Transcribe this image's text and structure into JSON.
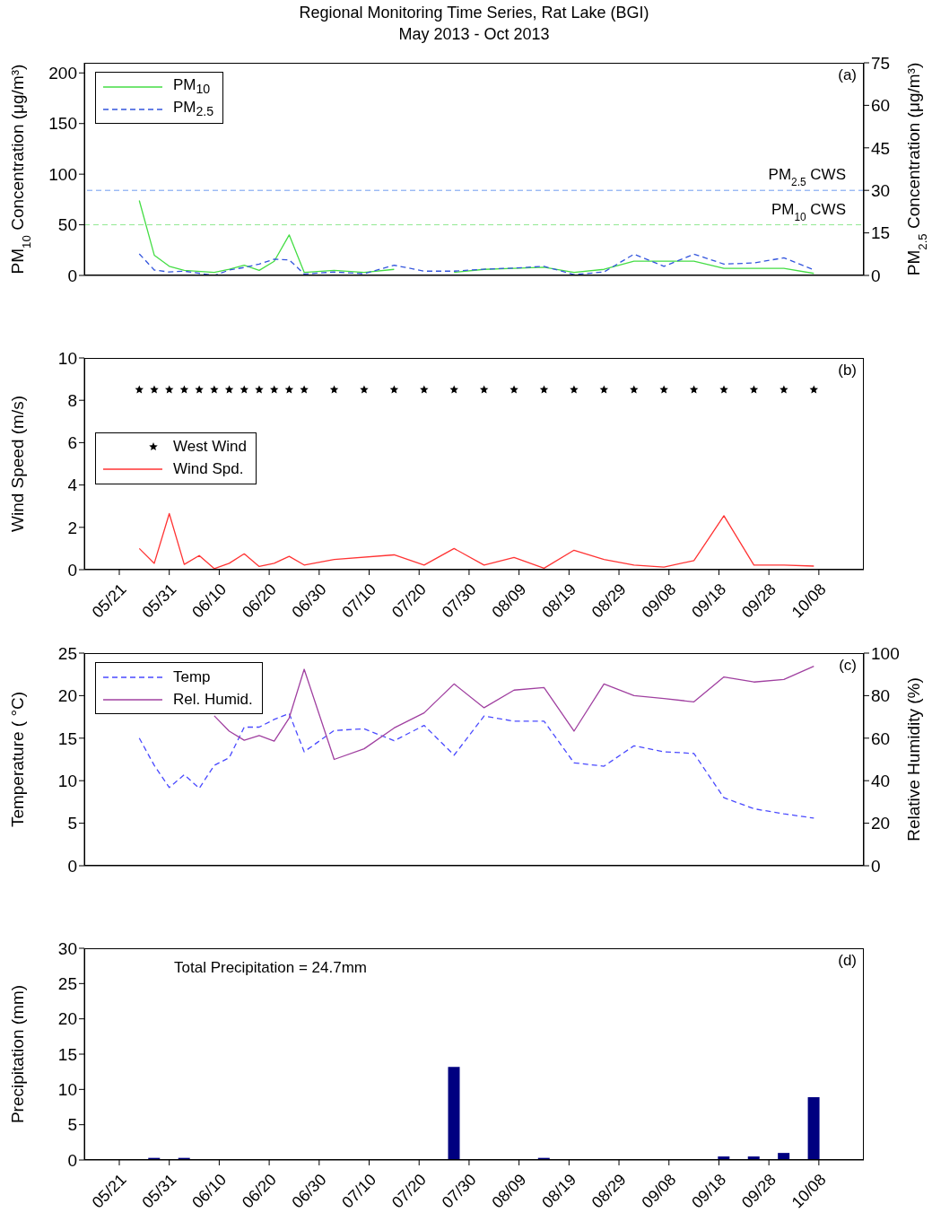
{
  "chart_data": [
    {
      "type": "line",
      "title": "Regional Monitoring Time Series, Rat Lake (BGI)",
      "subtitle": "May 2013 - Oct 2013",
      "ylabel": "PM$_{10}$ Concentration (μg/m³)",
      "y2label": "PM$_{2.5}$ Concentration (μg/m³)",
      "x": [
        "--05-25",
        "--05-28",
        "--05-31",
        "--06-03",
        "--06-09",
        "--06-12",
        "--06-15",
        "--06-18",
        "--06-21",
        "--06-24",
        "--06-27",
        "--07-03",
        "--07-09",
        "--07-15",
        "--07-21",
        "--07-27",
        "--08-02",
        "--08-08",
        "--08-14",
        "--08-20",
        "--08-26",
        "--09-01",
        "--09-07",
        "--09-13",
        "--09-19",
        "--09-25",
        "--10-01",
        "--10-07"
      ],
      "series": [
        {
          "name": "PM$_{10}$",
          "color": "#44dd44",
          "line_style": "solid",
          "values": [
            74,
            20,
            9,
            5,
            3,
            6,
            10,
            5,
            14,
            40,
            3,
            5,
            3,
            6,
            null,
            3,
            6,
            7,
            8,
            3,
            6,
            14,
            14,
            14,
            7,
            7,
            7,
            2
          ]
        },
        {
          "name": "PM$_{2.5}$",
          "color": "#3355dd",
          "line_style": "dashed",
          "axis": "y2",
          "values": [
            7.6,
            1.9,
            1.2,
            1.5,
            0,
            1.9,
            2.8,
            4,
            5.7,
            5.5,
            0.5,
            1.2,
            0.6,
            3.6,
            1.5,
            1.5,
            2.2,
            2.6,
            3.2,
            0.3,
            1.2,
            7.5,
            3.2,
            7.5,
            4,
            4.4,
            6.2,
            2
          ]
        }
      ],
      "xlim": [
        "--05-14",
        "--10-17"
      ],
      "xticks": [
        {
          "value": "--05-21",
          "label": "05/21"
        },
        {
          "value": "--05-31",
          "label": "05/31"
        },
        {
          "value": "--06-10",
          "label": "06/10"
        },
        {
          "value": "--06-20",
          "label": "06/20"
        },
        {
          "value": "--06-30",
          "label": "06/30"
        },
        {
          "value": "--07-10",
          "label": "07/10"
        },
        {
          "value": "--07-20",
          "label": "07/20"
        },
        {
          "value": "--07-30",
          "label": "07/30"
        },
        {
          "value": "--08-09",
          "label": "08/09"
        },
        {
          "value": "--08-19",
          "label": "08/19"
        },
        {
          "value": "--08-29",
          "label": "08/29"
        },
        {
          "value": "--09-08",
          "label": "09/08"
        },
        {
          "value": "--09-18",
          "label": "09/18"
        },
        {
          "value": "--09-28",
          "label": "09/28"
        },
        {
          "value": "--10-08",
          "label": "10/08"
        }
      ],
      "ylim": [
        0,
        210
      ],
      "yticks": [
        0,
        50,
        100,
        150,
        200
      ],
      "y2lim": [
        0,
        75
      ],
      "y2ticks": [
        0,
        15,
        30,
        45,
        60,
        75
      ],
      "tick_labels": "y",
      "ref_lines": [
        {
          "axis": "y2",
          "value": 30,
          "label": "PM$_{2.5}$ CWS",
          "color": "#6f9cf0",
          "line_style": "dashed"
        },
        {
          "axis": "y",
          "value": 50,
          "label": "PM$_{10}$ CWS",
          "color": "#90e890",
          "line_style": "dashed"
        }
      ],
      "annotations": [
        "(a)"
      ],
      "legend": "top left"
    },
    {
      "type": "line",
      "ylabel": "Wind Speed (m/s)",
      "x": [
        "--05-25",
        "--05-28",
        "--05-31",
        "--06-03",
        "--06-06",
        "--06-09",
        "--06-12",
        "--06-15",
        "--06-18",
        "--06-21",
        "--06-24",
        "--06-27",
        "--07-03",
        "--07-15",
        "--07-21",
        "--07-27",
        "--08-02",
        "--08-08",
        "--08-14",
        "--08-20",
        "--08-26",
        "--09-01",
        "--09-07",
        "--09-13",
        "--09-19",
        "--09-25",
        "--10-01",
        "--10-07"
      ],
      "series": [
        {
          "name": "West Wind",
          "type": "scatter",
          "color": "#000000",
          "marker": "star",
          "x": [
            "--05-25",
            "--05-28",
            "--05-31",
            "--06-03",
            "--06-06",
            "--06-09",
            "--06-12",
            "--06-15",
            "--06-18",
            "--06-21",
            "--06-24",
            "--06-27",
            "--07-03",
            "--07-09",
            "--07-15",
            "--07-21",
            "--07-27",
            "--08-02",
            "--08-08",
            "--08-14",
            "--08-20",
            "--08-26",
            "--09-01",
            "--09-07",
            "--09-13",
            "--09-19",
            "--09-25",
            "--10-01",
            "--10-07"
          ],
          "values": [
            8.5,
            8.5,
            8.5,
            8.5,
            8.5,
            8.5,
            8.5,
            8.5,
            8.5,
            8.5,
            8.5,
            8.5,
            8.5,
            8.5,
            8.5,
            8.5,
            8.5,
            8.5,
            8.5,
            8.5,
            8.5,
            8.5,
            8.5,
            8.5,
            8.5,
            8.5,
            8.5,
            8.5,
            8.5
          ]
        },
        {
          "name": "Wind Spd.",
          "color": "#ff3333",
          "line_style": "solid",
          "values": [
            1.0,
            0.3,
            2.65,
            0.25,
            0.67,
            0.05,
            0.3,
            0.75,
            0.15,
            0.3,
            0.63,
            0.22,
            0.48,
            0.7,
            0.22,
            1.0,
            0.22,
            0.58,
            0.07,
            0.92,
            0.48,
            0.22,
            0.12,
            0.43,
            2.55,
            0.22,
            0.22,
            0.17
          ]
        }
      ],
      "xlim": [
        "--05-14",
        "--10-17"
      ],
      "xticks": [
        {
          "value": "--05-21",
          "label": "05/21"
        },
        {
          "value": "--05-31",
          "label": "05/31"
        },
        {
          "value": "--06-10",
          "label": "06/10"
        },
        {
          "value": "--06-20",
          "label": "06/20"
        },
        {
          "value": "--06-30",
          "label": "06/30"
        },
        {
          "value": "--07-10",
          "label": "07/10"
        },
        {
          "value": "--07-20",
          "label": "07/20"
        },
        {
          "value": "--07-30",
          "label": "07/30"
        },
        {
          "value": "--08-09",
          "label": "08/09"
        },
        {
          "value": "--08-19",
          "label": "08/19"
        },
        {
          "value": "--08-29",
          "label": "08/29"
        },
        {
          "value": "--09-08",
          "label": "09/08"
        },
        {
          "value": "--09-18",
          "label": "09/18"
        },
        {
          "value": "--09-28",
          "label": "09/28"
        },
        {
          "value": "--10-08",
          "label": "10/08"
        }
      ],
      "ylim": [
        0,
        10
      ],
      "yticks": [
        0,
        2,
        4,
        6,
        8,
        10
      ],
      "annotations": [
        "(b)"
      ],
      "legend": "left"
    },
    {
      "type": "line",
      "ylabel": "Temperature ( °C)",
      "y2label": "Relative Humidity (%)",
      "x": [
        "--05-25",
        "--05-28",
        "--05-31",
        "--06-03",
        "--06-06",
        "--06-09",
        "--06-12",
        "--06-15",
        "--06-18",
        "--06-21",
        "--06-24",
        "--06-27",
        "--07-03",
        "--07-09",
        "--07-15",
        "--07-21",
        "--07-27",
        "--08-02",
        "--08-08",
        "--08-14",
        "--08-20",
        "--08-26",
        "--09-01",
        "--09-07",
        "--09-13",
        "--09-19",
        "--09-25",
        "--10-01",
        "--10-07"
      ],
      "series": [
        {
          "name": "Temp",
          "color": "#4a4aff",
          "line_style": "dashed",
          "values": [
            15.0,
            11.8,
            9.2,
            10.7,
            9.1,
            11.8,
            12.7,
            16.3,
            16.3,
            17.2,
            17.9,
            13.4,
            15.9,
            16.1,
            14.7,
            16.5,
            13.0,
            17.6,
            17.0,
            17.0,
            12.1,
            11.7,
            14.1,
            13.4,
            13.2,
            8.0,
            6.7,
            6.1,
            5.6
          ]
        },
        {
          "name": "Rel. Humid.",
          "color": "#a040a0",
          "line_style": "solid",
          "axis": "y2",
          "values": [
            null,
            null,
            null,
            null,
            null,
            70.5,
            63.3,
            59,
            61.2,
            58.6,
            69.5,
            92.4,
            50,
            55,
            64.8,
            71.9,
            85.5,
            74.3,
            82.6,
            83.8,
            63.3,
            85.5,
            80,
            78.6,
            77.1,
            88.8,
            86.4,
            87.6,
            93.8
          ]
        }
      ],
      "xlim": [
        "--05-14",
        "--10-17"
      ],
      "xticks": [
        {
          "value": "--05-21",
          "label": "05/21"
        },
        {
          "value": "--05-31",
          "label": "05/31"
        },
        {
          "value": "--06-10",
          "label": "06/10"
        },
        {
          "value": "--06-20",
          "label": "06/20"
        },
        {
          "value": "--06-30",
          "label": "06/30"
        },
        {
          "value": "--07-10",
          "label": "07/10"
        },
        {
          "value": "--07-20",
          "label": "07/20"
        },
        {
          "value": "--07-30",
          "label": "07/30"
        },
        {
          "value": "--08-09",
          "label": "08/09"
        },
        {
          "value": "--08-19",
          "label": "08/19"
        },
        {
          "value": "--08-29",
          "label": "08/29"
        },
        {
          "value": "--09-08",
          "label": "09/08"
        },
        {
          "value": "--09-18",
          "label": "09/18"
        },
        {
          "value": "--09-28",
          "label": "09/28"
        },
        {
          "value": "--10-08",
          "label": "10/08"
        }
      ],
      "ylim": [
        0,
        25
      ],
      "yticks": [
        0,
        5,
        10,
        15,
        20,
        25
      ],
      "y2lim": [
        0,
        100
      ],
      "y2ticks": [
        0,
        20,
        40,
        60,
        80,
        100
      ],
      "tick_labels": "y",
      "annotations": [
        "(c)"
      ],
      "legend": "top left"
    },
    {
      "type": "bar",
      "ylabel": "Precipitation (mm)",
      "x": [
        "--05-28",
        "--06-03",
        "--06-24",
        "--07-27",
        "--08-08",
        "--08-14",
        "--09-19",
        "--09-25",
        "--10-01",
        "--10-07"
      ],
      "series": [
        {
          "color": "#000080",
          "values": [
            0.3,
            0.3,
            0.1,
            13.2,
            0.1,
            0.3,
            0.5,
            0.5,
            1.0,
            8.9
          ]
        }
      ],
      "xlim": [
        "--05-14",
        "--10-17"
      ],
      "xticks": [
        {
          "value": "--05-21",
          "label": "05/21"
        },
        {
          "value": "--05-31",
          "label": "05/31"
        },
        {
          "value": "--06-10",
          "label": "06/10"
        },
        {
          "value": "--06-20",
          "label": "06/20"
        },
        {
          "value": "--06-30",
          "label": "06/30"
        },
        {
          "value": "--07-10",
          "label": "07/10"
        },
        {
          "value": "--07-20",
          "label": "07/20"
        },
        {
          "value": "--07-30",
          "label": "07/30"
        },
        {
          "value": "--08-09",
          "label": "08/09"
        },
        {
          "value": "--08-19",
          "label": "08/19"
        },
        {
          "value": "--08-29",
          "label": "08/29"
        },
        {
          "value": "--09-08",
          "label": "09/08"
        },
        {
          "value": "--09-18",
          "label": "09/18"
        },
        {
          "value": "--09-28",
          "label": "09/28"
        },
        {
          "value": "--10-08",
          "label": "10/08"
        }
      ],
      "ylim": [
        0,
        30
      ],
      "yticks": [
        0,
        5,
        10,
        15,
        20,
        25,
        30
      ],
      "annotations": [
        "(d)",
        "Total Precipitation = 24.7mm"
      ]
    }
  ]
}
